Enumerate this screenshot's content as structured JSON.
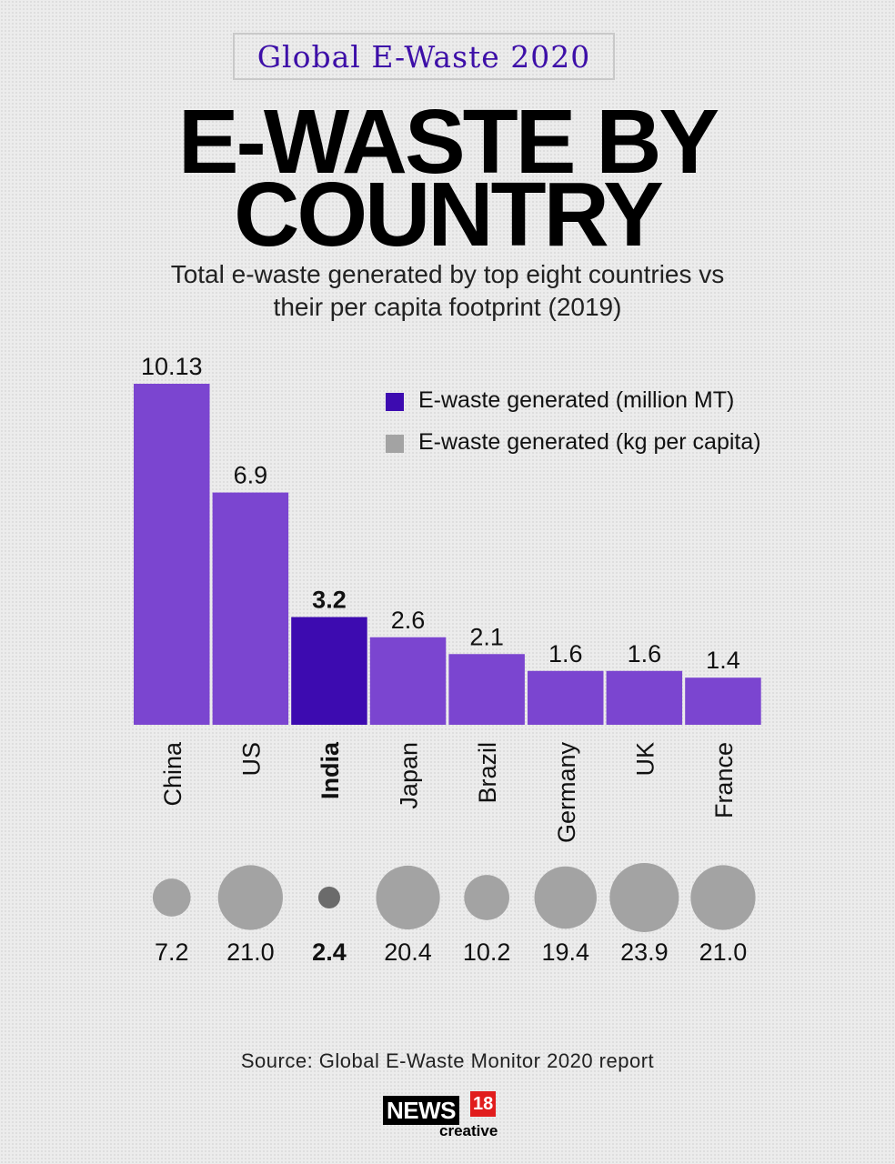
{
  "header": {
    "tag": "Global E-Waste 2020",
    "title_line1": "E-WASTE BY",
    "title_line2": "COUNTRY",
    "subtitle_line1": "Total e-waste generated by top eight countries vs",
    "subtitle_line2": "their per capita footprint (2019)"
  },
  "legend": {
    "items": [
      {
        "label": "E-waste generated (million MT)",
        "color": "#3d0bb0"
      },
      {
        "label": "E-waste generated (kg per capita)",
        "color": "#a3a3a3"
      }
    ]
  },
  "colors": {
    "bar": "#7b45d0",
    "bar_highlight": "#3d0bb0",
    "bubble": "#a3a3a3",
    "bubble_highlight": "#6b6b6b"
  },
  "chart_data": [
    {
      "type": "bar",
      "title": "E-waste generated (million MT)",
      "categories": [
        "China",
        "US",
        "India",
        "Japan",
        "Brazil",
        "Germany",
        "UK",
        "France"
      ],
      "values": [
        10.13,
        6.9,
        3.2,
        2.6,
        2.1,
        1.6,
        1.6,
        1.4
      ],
      "value_labels": [
        "10.13",
        "6.9",
        "3.2",
        "2.6",
        "2.1",
        "1.6",
        "1.6",
        "1.4"
      ],
      "highlight": "India",
      "xlabel": "",
      "ylabel": "",
      "ylim": [
        0,
        10.13
      ],
      "grid": false,
      "legend": "top-right"
    },
    {
      "type": "scatter",
      "title": "E-waste generated (kg per capita)",
      "categories": [
        "China",
        "US",
        "India",
        "Japan",
        "Brazil",
        "Germany",
        "UK",
        "France"
      ],
      "values": [
        7.2,
        21.0,
        2.4,
        20.4,
        10.2,
        19.4,
        23.9,
        21.0
      ],
      "value_labels": [
        "7.2",
        "21.0",
        "2.4",
        "20.4",
        "10.2",
        "19.4",
        "23.9",
        "21.0"
      ],
      "highlight": "India",
      "encoding": "bubble size"
    }
  ],
  "footer": {
    "source": "Source: Global E-Waste Monitor 2020 report",
    "logo_main": "NEWS",
    "logo_number": "18",
    "logo_sub": "creative"
  }
}
